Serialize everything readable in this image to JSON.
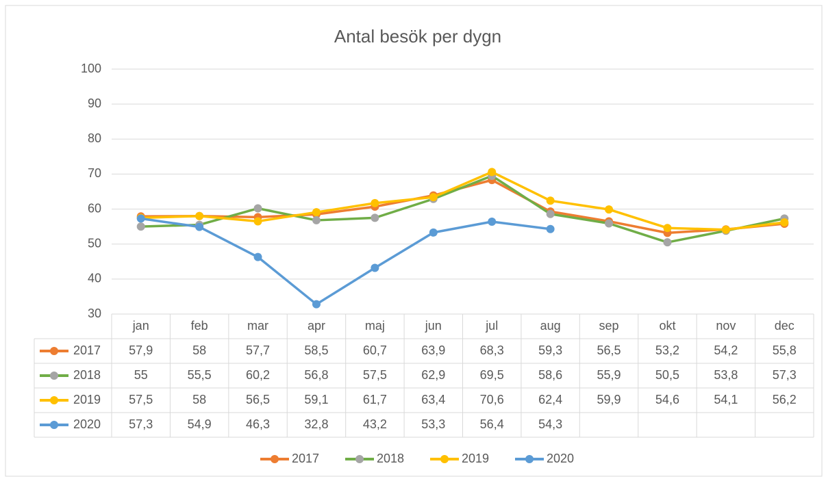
{
  "chart_data": {
    "type": "line",
    "title": "Antal besök per dygn",
    "categories": [
      "jan",
      "feb",
      "mar",
      "apr",
      "maj",
      "jun",
      "jul",
      "aug",
      "sep",
      "okt",
      "nov",
      "dec"
    ],
    "series": [
      {
        "name": "2017",
        "color": "#ed7d31",
        "marker_color": "#ed7d31",
        "values": [
          57.9,
          58,
          57.7,
          58.5,
          60.7,
          63.9,
          68.3,
          59.3,
          56.5,
          53.2,
          54.2,
          55.8
        ],
        "value_labels": [
          "57,9",
          "58",
          "57,7",
          "58,5",
          "60,7",
          "63,9",
          "68,3",
          "59,3",
          "56,5",
          "53,2",
          "54,2",
          "55,8"
        ]
      },
      {
        "name": "2018",
        "color": "#70ad47",
        "marker_color": "#a5a5a5",
        "values": [
          55,
          55.5,
          60.2,
          56.8,
          57.5,
          62.9,
          69.5,
          58.6,
          55.9,
          50.5,
          53.8,
          57.3
        ],
        "value_labels": [
          "55",
          "55,5",
          "60,2",
          "56,8",
          "57,5",
          "62,9",
          "69,5",
          "58,6",
          "55,9",
          "50,5",
          "53,8",
          "57,3"
        ]
      },
      {
        "name": "2019",
        "color": "#ffc000",
        "marker_color": "#ffc000",
        "values": [
          57.5,
          58,
          56.5,
          59.1,
          61.7,
          63.4,
          70.6,
          62.4,
          59.9,
          54.6,
          54.1,
          56.2
        ],
        "value_labels": [
          "57,5",
          "58",
          "56,5",
          "59,1",
          "61,7",
          "63,4",
          "70,6",
          "62,4",
          "59,9",
          "54,6",
          "54,1",
          "56,2"
        ]
      },
      {
        "name": "2020",
        "color": "#5b9bd5",
        "marker_color": "#5b9bd5",
        "values": [
          57.3,
          54.9,
          46.3,
          32.8,
          43.2,
          53.3,
          56.4,
          54.3,
          null,
          null,
          null,
          null
        ],
        "value_labels": [
          "57,3",
          "54,9",
          "46,3",
          "32,8",
          "43,2",
          "53,3",
          "56,4",
          "54,3",
          null,
          null,
          null,
          null
        ]
      }
    ],
    "ylim": [
      30,
      100
    ],
    "yticks": [
      30,
      40,
      50,
      60,
      70,
      80,
      90,
      100
    ],
    "grid": true,
    "legend": "bottom"
  }
}
